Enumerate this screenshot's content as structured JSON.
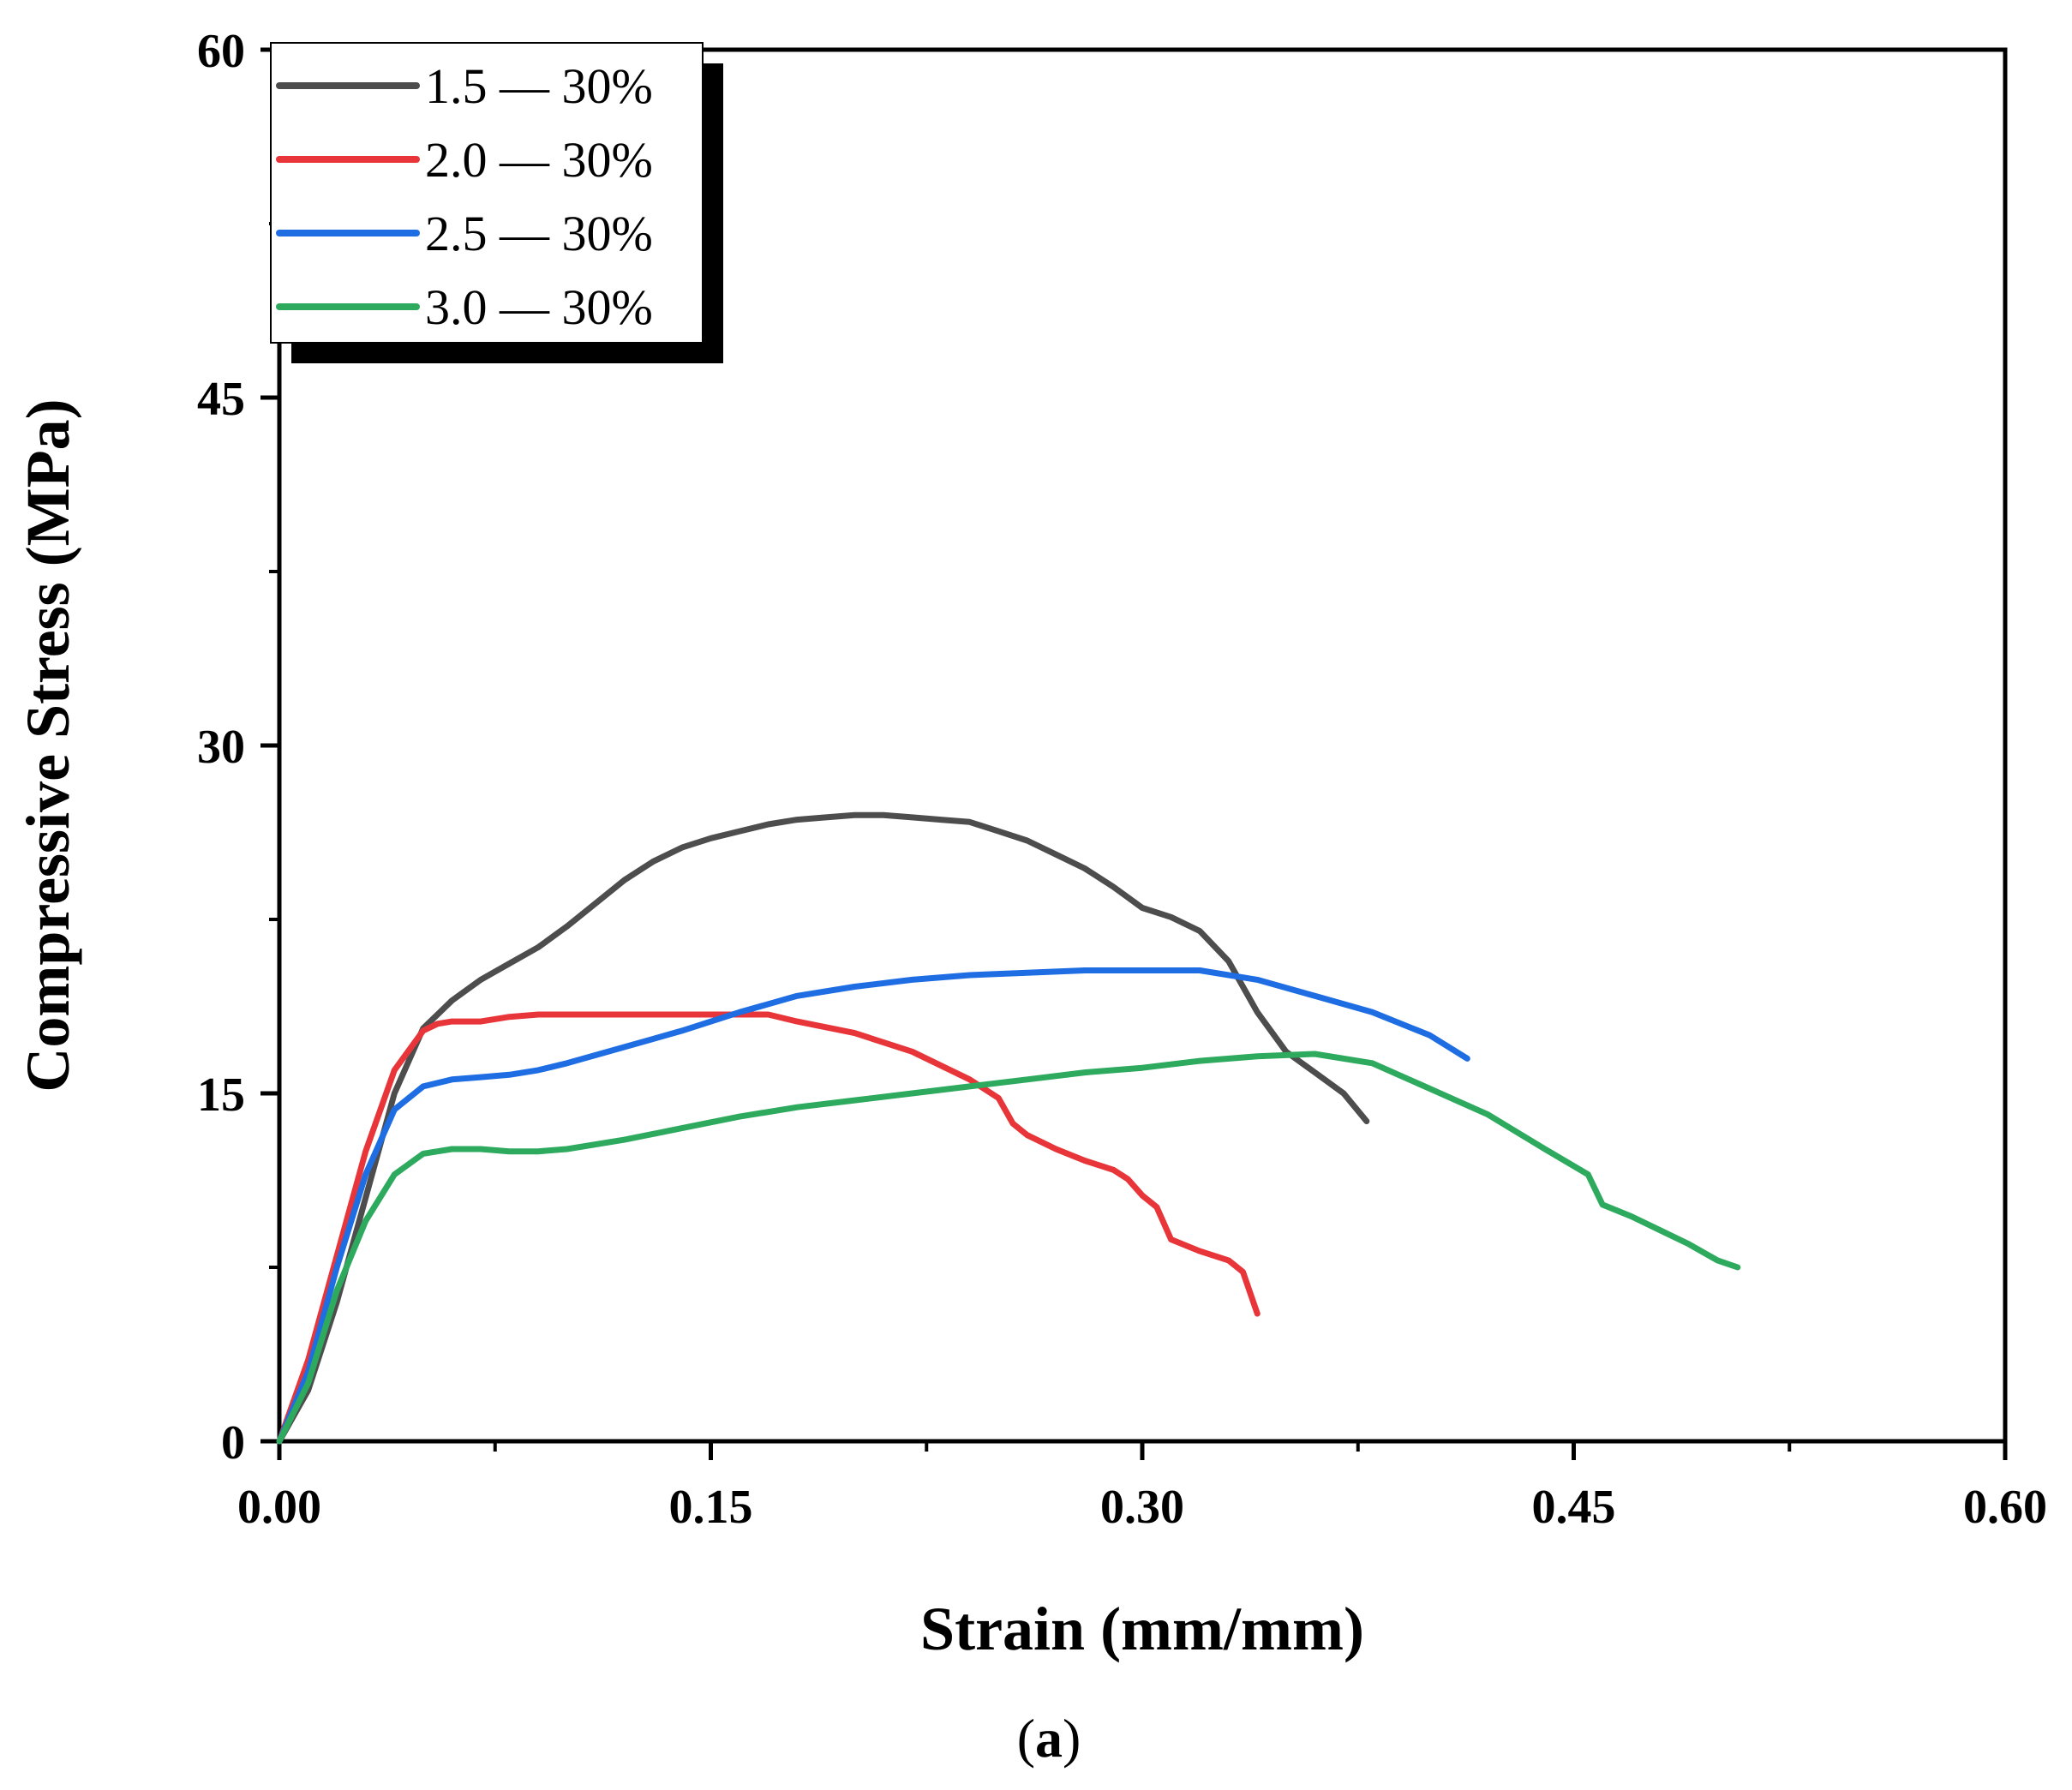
{
  "chart_data": {
    "type": "line",
    "title": "",
    "caption_open": "(",
    "caption_letter": "a",
    "caption_close": ")",
    "xlabel": "Strain (mm/mm)",
    "ylabel": "Compressive Stress (MPa)",
    "xlim": [
      0,
      0.6
    ],
    "ylim": [
      0,
      60
    ],
    "x_ticks": [
      0,
      0.15,
      0.3,
      0.45,
      0.6
    ],
    "x_tick_labels": [
      "0.00",
      "0.15",
      "0.30",
      "0.45",
      "0.60"
    ],
    "x_minor_ticks": [
      0.075,
      0.225,
      0.375,
      0.525
    ],
    "y_ticks": [
      0,
      15,
      30,
      45,
      60
    ],
    "y_tick_labels": [
      "0",
      "15",
      "30",
      "45",
      "60"
    ],
    "y_minor_ticks": [
      7.5,
      22.5,
      37.5,
      52.5
    ],
    "grid": false,
    "legend_position": "top-left",
    "series": [
      {
        "name": "1.5 — 30%",
        "color": "#4d4d4d",
        "x": [
          0,
          0.01,
          0.02,
          0.03,
          0.04,
          0.05,
          0.06,
          0.07,
          0.08,
          0.09,
          0.1,
          0.11,
          0.12,
          0.13,
          0.14,
          0.15,
          0.16,
          0.17,
          0.18,
          0.19,
          0.2,
          0.21,
          0.22,
          0.23,
          0.24,
          0.25,
          0.26,
          0.27,
          0.28,
          0.29,
          0.3,
          0.31,
          0.32,
          0.33,
          0.34,
          0.35,
          0.36,
          0.37,
          0.378
        ],
        "y": [
          0,
          2.2,
          6,
          10.5,
          15,
          17.8,
          19,
          19.9,
          20.6,
          21.3,
          22.2,
          23.2,
          24.2,
          25,
          25.6,
          26,
          26.3,
          26.6,
          26.8,
          26.9,
          27,
          27,
          26.9,
          26.8,
          26.7,
          26.3,
          25.9,
          25.3,
          24.7,
          23.9,
          23,
          22.6,
          22,
          20.7,
          18.5,
          16.8,
          15.9,
          15,
          13.8
        ]
      },
      {
        "name": "2.0 — 30%",
        "color": "#e8353a",
        "x": [
          0,
          0.01,
          0.02,
          0.03,
          0.04,
          0.05,
          0.055,
          0.06,
          0.07,
          0.08,
          0.09,
          0.1,
          0.12,
          0.14,
          0.16,
          0.17,
          0.18,
          0.2,
          0.22,
          0.24,
          0.25,
          0.255,
          0.26,
          0.27,
          0.28,
          0.29,
          0.295,
          0.3,
          0.305,
          0.31,
          0.32,
          0.33,
          0.335,
          0.34
        ],
        "y": [
          0,
          3.5,
          8,
          12.5,
          16,
          17.7,
          18,
          18.1,
          18.1,
          18.3,
          18.4,
          18.4,
          18.4,
          18.4,
          18.4,
          18.4,
          18.1,
          17.6,
          16.8,
          15.6,
          14.8,
          13.7,
          13.2,
          12.6,
          12.1,
          11.7,
          11.3,
          10.6,
          10.1,
          8.7,
          8.2,
          7.8,
          7.3,
          5.5
        ]
      },
      {
        "name": "2.5 — 30%",
        "color": "#1e6de3",
        "x": [
          0,
          0.01,
          0.02,
          0.03,
          0.04,
          0.05,
          0.06,
          0.07,
          0.08,
          0.09,
          0.1,
          0.12,
          0.14,
          0.16,
          0.18,
          0.2,
          0.22,
          0.24,
          0.26,
          0.28,
          0.3,
          0.32,
          0.34,
          0.36,
          0.38,
          0.4,
          0.413
        ],
        "y": [
          0,
          3,
          7.5,
          11.5,
          14.3,
          15.3,
          15.6,
          15.7,
          15.8,
          16,
          16.3,
          17,
          17.7,
          18.5,
          19.2,
          19.6,
          19.9,
          20.1,
          20.2,
          20.3,
          20.3,
          20.3,
          19.9,
          19.2,
          18.5,
          17.5,
          16.5
        ]
      },
      {
        "name": "3.0 — 30%",
        "color": "#2eaa5f",
        "x": [
          0,
          0.01,
          0.02,
          0.03,
          0.04,
          0.05,
          0.06,
          0.07,
          0.08,
          0.09,
          0.1,
          0.12,
          0.14,
          0.16,
          0.18,
          0.2,
          0.22,
          0.24,
          0.26,
          0.28,
          0.3,
          0.32,
          0.34,
          0.36,
          0.38,
          0.4,
          0.42,
          0.44,
          0.455,
          0.46,
          0.47,
          0.48,
          0.49,
          0.5,
          0.507
        ],
        "y": [
          0,
          2.5,
          6.5,
          9.5,
          11.5,
          12.4,
          12.6,
          12.6,
          12.5,
          12.5,
          12.6,
          13,
          13.5,
          14,
          14.4,
          14.7,
          15,
          15.3,
          15.6,
          15.9,
          16.1,
          16.4,
          16.6,
          16.7,
          16.3,
          15.2,
          14.1,
          12.6,
          11.5,
          10.2,
          9.7,
          9.1,
          8.5,
          7.8,
          7.5
        ]
      }
    ]
  }
}
